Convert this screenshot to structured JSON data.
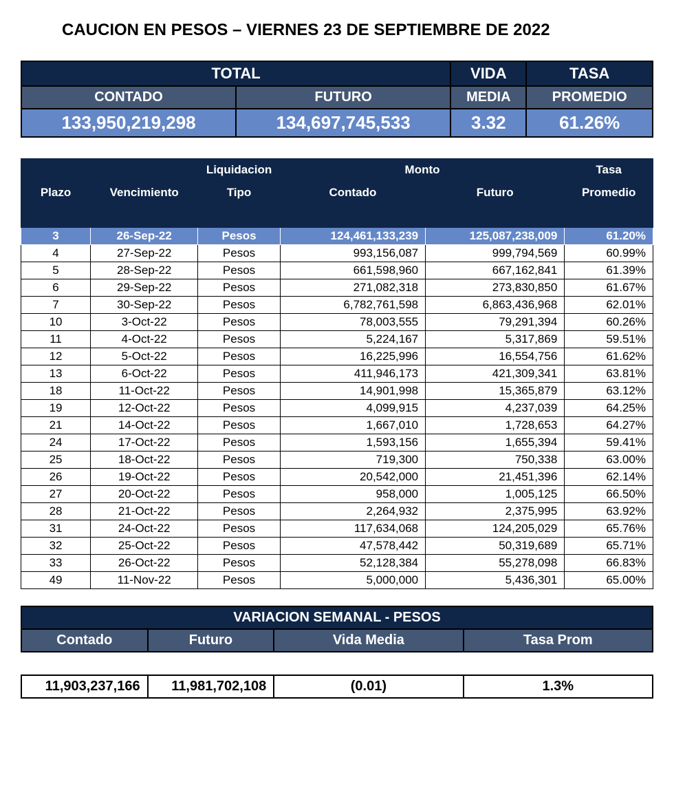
{
  "title": "CAUCION EN PESOS – VIERNES  23 DE SEPTIEMBRE DE 2022",
  "colors": {
    "header_dark": "#0f2648",
    "header_mid": "#445774",
    "row_highlight": "#6487c7",
    "background": "#ffffff",
    "text": "#000000",
    "border": "#000000"
  },
  "summary": {
    "labels": {
      "total": "TOTAL",
      "contado": "CONTADO",
      "futuro": "FUTURO",
      "vida": "VIDA",
      "media": "MEDIA",
      "tasa": "TASA",
      "promedio": "PROMEDIO"
    },
    "values": {
      "contado": "133,950,219,298",
      "futuro": "134,697,745,533",
      "vida_media": "3.32",
      "tasa_promedio": "61.26%"
    }
  },
  "detail": {
    "headers": {
      "plazo": "Plazo",
      "vencimiento": "Vencimiento",
      "liquidacion": "Liquidacion",
      "tipo": "Tipo",
      "monto": "Monto",
      "contado": "Contado",
      "futuro": "Futuro",
      "tasa": "Tasa",
      "promedio": "Promedio"
    },
    "rows": [
      {
        "plazo": "3",
        "venc": "26-Sep-22",
        "tipo": "Pesos",
        "contado": "124,461,133,239",
        "futuro": "125,087,238,009",
        "tasa": "61.20%",
        "highlight": true
      },
      {
        "plazo": "4",
        "venc": "27-Sep-22",
        "tipo": "Pesos",
        "contado": "993,156,087",
        "futuro": "999,794,569",
        "tasa": "60.99%"
      },
      {
        "plazo": "5",
        "venc": "28-Sep-22",
        "tipo": "Pesos",
        "contado": "661,598,960",
        "futuro": "667,162,841",
        "tasa": "61.39%"
      },
      {
        "plazo": "6",
        "venc": "29-Sep-22",
        "tipo": "Pesos",
        "contado": "271,082,318",
        "futuro": "273,830,850",
        "tasa": "61.67%"
      },
      {
        "plazo": "7",
        "venc": "30-Sep-22",
        "tipo": "Pesos",
        "contado": "6,782,761,598",
        "futuro": "6,863,436,968",
        "tasa": "62.01%"
      },
      {
        "plazo": "10",
        "venc": "3-Oct-22",
        "tipo": "Pesos",
        "contado": "78,003,555",
        "futuro": "79,291,394",
        "tasa": "60.26%"
      },
      {
        "plazo": "11",
        "venc": "4-Oct-22",
        "tipo": "Pesos",
        "contado": "5,224,167",
        "futuro": "5,317,869",
        "tasa": "59.51%"
      },
      {
        "plazo": "12",
        "venc": "5-Oct-22",
        "tipo": "Pesos",
        "contado": "16,225,996",
        "futuro": "16,554,756",
        "tasa": "61.62%"
      },
      {
        "plazo": "13",
        "venc": "6-Oct-22",
        "tipo": "Pesos",
        "contado": "411,946,173",
        "futuro": "421,309,341",
        "tasa": "63.81%"
      },
      {
        "plazo": "18",
        "venc": "11-Oct-22",
        "tipo": "Pesos",
        "contado": "14,901,998",
        "futuro": "15,365,879",
        "tasa": "63.12%"
      },
      {
        "plazo": "19",
        "venc": "12-Oct-22",
        "tipo": "Pesos",
        "contado": "4,099,915",
        "futuro": "4,237,039",
        "tasa": "64.25%"
      },
      {
        "plazo": "21",
        "venc": "14-Oct-22",
        "tipo": "Pesos",
        "contado": "1,667,010",
        "futuro": "1,728,653",
        "tasa": "64.27%"
      },
      {
        "plazo": "24",
        "venc": "17-Oct-22",
        "tipo": "Pesos",
        "contado": "1,593,156",
        "futuro": "1,655,394",
        "tasa": "59.41%"
      },
      {
        "plazo": "25",
        "venc": "18-Oct-22",
        "tipo": "Pesos",
        "contado": "719,300",
        "futuro": "750,338",
        "tasa": "63.00%"
      },
      {
        "plazo": "26",
        "venc": "19-Oct-22",
        "tipo": "Pesos",
        "contado": "20,542,000",
        "futuro": "21,451,396",
        "tasa": "62.14%"
      },
      {
        "plazo": "27",
        "venc": "20-Oct-22",
        "tipo": "Pesos",
        "contado": "958,000",
        "futuro": "1,005,125",
        "tasa": "66.50%"
      },
      {
        "plazo": "28",
        "venc": "21-Oct-22",
        "tipo": "Pesos",
        "contado": "2,264,932",
        "futuro": "2,375,995",
        "tasa": "63.92%"
      },
      {
        "plazo": "31",
        "venc": "24-Oct-22",
        "tipo": "Pesos",
        "contado": "117,634,068",
        "futuro": "124,205,029",
        "tasa": "65.76%"
      },
      {
        "plazo": "32",
        "venc": "25-Oct-22",
        "tipo": "Pesos",
        "contado": "47,578,442",
        "futuro": "50,319,689",
        "tasa": "65.71%"
      },
      {
        "plazo": "33",
        "venc": "26-Oct-22",
        "tipo": "Pesos",
        "contado": "52,128,384",
        "futuro": "55,278,098",
        "tasa": "66.83%"
      },
      {
        "plazo": "49",
        "venc": "11-Nov-22",
        "tipo": "Pesos",
        "contado": "5,000,000",
        "futuro": "5,436,301",
        "tasa": "65.00%"
      }
    ],
    "column_widths_pct": [
      11,
      17,
      13,
      23,
      22,
      14
    ],
    "alignments": [
      "center",
      "center",
      "center",
      "right",
      "right",
      "right"
    ],
    "font_size_pt": 13
  },
  "variation": {
    "title": "VARIACION SEMANAL - PESOS",
    "headers": {
      "contado": "Contado",
      "futuro": "Futuro",
      "vida_media": "Vida Media",
      "tasa_prom": "Tasa Prom"
    },
    "values": {
      "contado": "11,903,237,166",
      "futuro": "11,981,702,108",
      "vida_media": "(0.01)",
      "tasa_prom": "1.3%"
    }
  }
}
